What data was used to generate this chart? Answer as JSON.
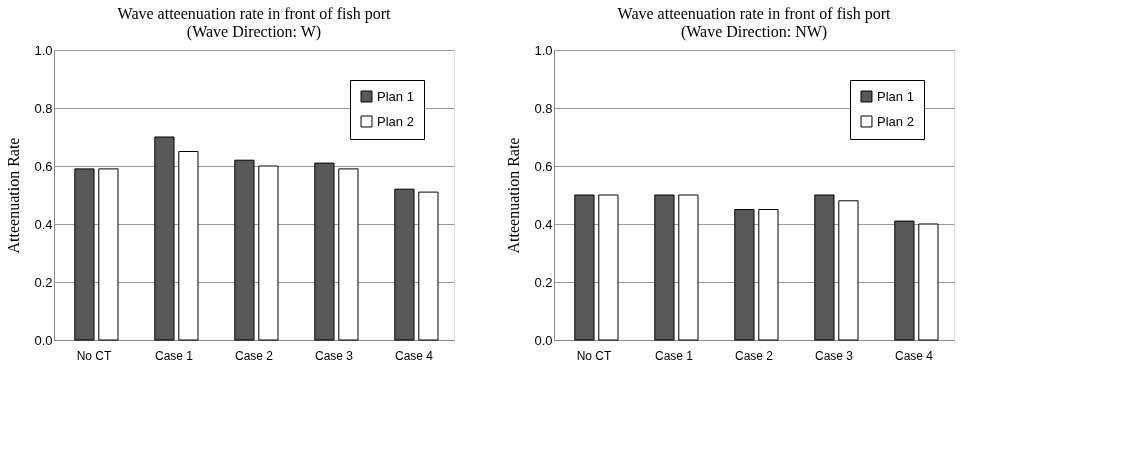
{
  "chart_data": [
    {
      "type": "bar",
      "title": [
        "Wave atteenuation rate in front of fish port",
        "(Wave Direction: W)"
      ],
      "ylabel": "Atteenuation Rate",
      "categories": [
        "No CT",
        "Case 1",
        "Case 2",
        "Case 3",
        "Case 4"
      ],
      "series": [
        {
          "name": "Plan 1",
          "color": "#595959",
          "values": [
            0.59,
            0.7,
            0.62,
            0.61,
            0.52
          ]
        },
        {
          "name": "Plan 2",
          "color": "#ffffff",
          "values": [
            0.59,
            0.65,
            0.6,
            0.59,
            0.51
          ]
        }
      ],
      "ylim": [
        0,
        1
      ],
      "yticks": [
        {
          "value": 0,
          "label": "0.0"
        },
        {
          "value": 0.2,
          "label": "0.2"
        },
        {
          "value": 0.4,
          "label": "0.4"
        },
        {
          "value": 0.6,
          "label": "0.6"
        },
        {
          "value": 0.8,
          "label": "0.8"
        },
        {
          "value": 1,
          "label": "1.0"
        }
      ],
      "grid": "y",
      "legend": "top right"
    },
    {
      "type": "bar",
      "title": [
        "Wave atteenuation rate in front of fish port",
        "(Wave Direction: NW)"
      ],
      "ylabel": "Atteenuation Rate",
      "categories": [
        "No CT",
        "Case 1",
        "Case 2",
        "Case 3",
        "Case 4"
      ],
      "series": [
        {
          "name": "Plan 1",
          "color": "#595959",
          "values": [
            0.5,
            0.5,
            0.45,
            0.5,
            0.41
          ]
        },
        {
          "name": "Plan 2",
          "color": "#ffffff",
          "values": [
            0.5,
            0.5,
            0.45,
            0.48,
            0.4
          ]
        }
      ],
      "ylim": [
        0,
        1
      ],
      "yticks": [
        {
          "value": 0,
          "label": "0.0"
        },
        {
          "value": 0.2,
          "label": "0.2"
        },
        {
          "value": 0.4,
          "label": "0.4"
        },
        {
          "value": 0.6,
          "label": "0.6"
        },
        {
          "value": 0.8,
          "label": "0.8"
        },
        {
          "value": 1,
          "label": "1.0"
        }
      ],
      "grid": "y",
      "legend": "top right"
    }
  ]
}
